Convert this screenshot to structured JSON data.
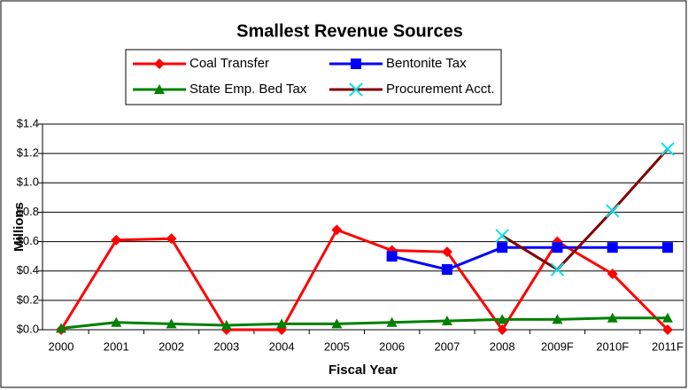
{
  "chart_data": {
    "type": "line",
    "title": "Smallest Revenue Sources",
    "x_label": "Fiscal Year",
    "y_label": "Millions",
    "categories": [
      "2000",
      "2001",
      "2002",
      "2003",
      "2004",
      "2005",
      "2006",
      "2007",
      "2008",
      "2009F",
      "2010F",
      "2011F"
    ],
    "series": [
      {
        "name": "Coal Transfer",
        "color": "#ff0000",
        "marker": "diamond",
        "values": [
          0.0,
          0.61,
          0.62,
          0.0,
          0.0,
          0.68,
          0.54,
          0.53,
          0.0,
          0.6,
          0.38,
          0.0
        ]
      },
      {
        "name": "Bentonite Tax",
        "color": "#0000ff",
        "marker": "square",
        "values": [
          null,
          null,
          null,
          null,
          null,
          null,
          0.5,
          0.41,
          0.56,
          0.56,
          0.56,
          0.56
        ]
      },
      {
        "name": "State Emp. Bed Tax",
        "color": "#008000",
        "marker": "triangle",
        "values": [
          0.01,
          0.05,
          0.04,
          0.03,
          0.04,
          0.04,
          0.05,
          0.06,
          0.07,
          0.07,
          0.08,
          0.08
        ]
      },
      {
        "name": "Procurement Acct.",
        "color": "#800000",
        "marker": "x",
        "marker_color": "#00e5e5",
        "values": [
          null,
          null,
          null,
          null,
          null,
          null,
          null,
          null,
          0.64,
          0.41,
          0.81,
          1.23
        ]
      }
    ],
    "ylim": [
      0,
      1.4
    ],
    "yticks": [
      {
        "value": 0,
        "label": "$0.0"
      },
      {
        "value": 0.2,
        "label": "$0.2"
      },
      {
        "value": 0.4,
        "label": "$0.4"
      },
      {
        "value": 0.6,
        "label": "$0.6"
      },
      {
        "value": 0.8,
        "label": "$0.8"
      },
      {
        "value": 1.0,
        "label": "$1.0"
      },
      {
        "value": 1.2,
        "label": "$1.2"
      },
      {
        "value": 1.4,
        "label": "$1.4"
      }
    ],
    "grid": true
  }
}
